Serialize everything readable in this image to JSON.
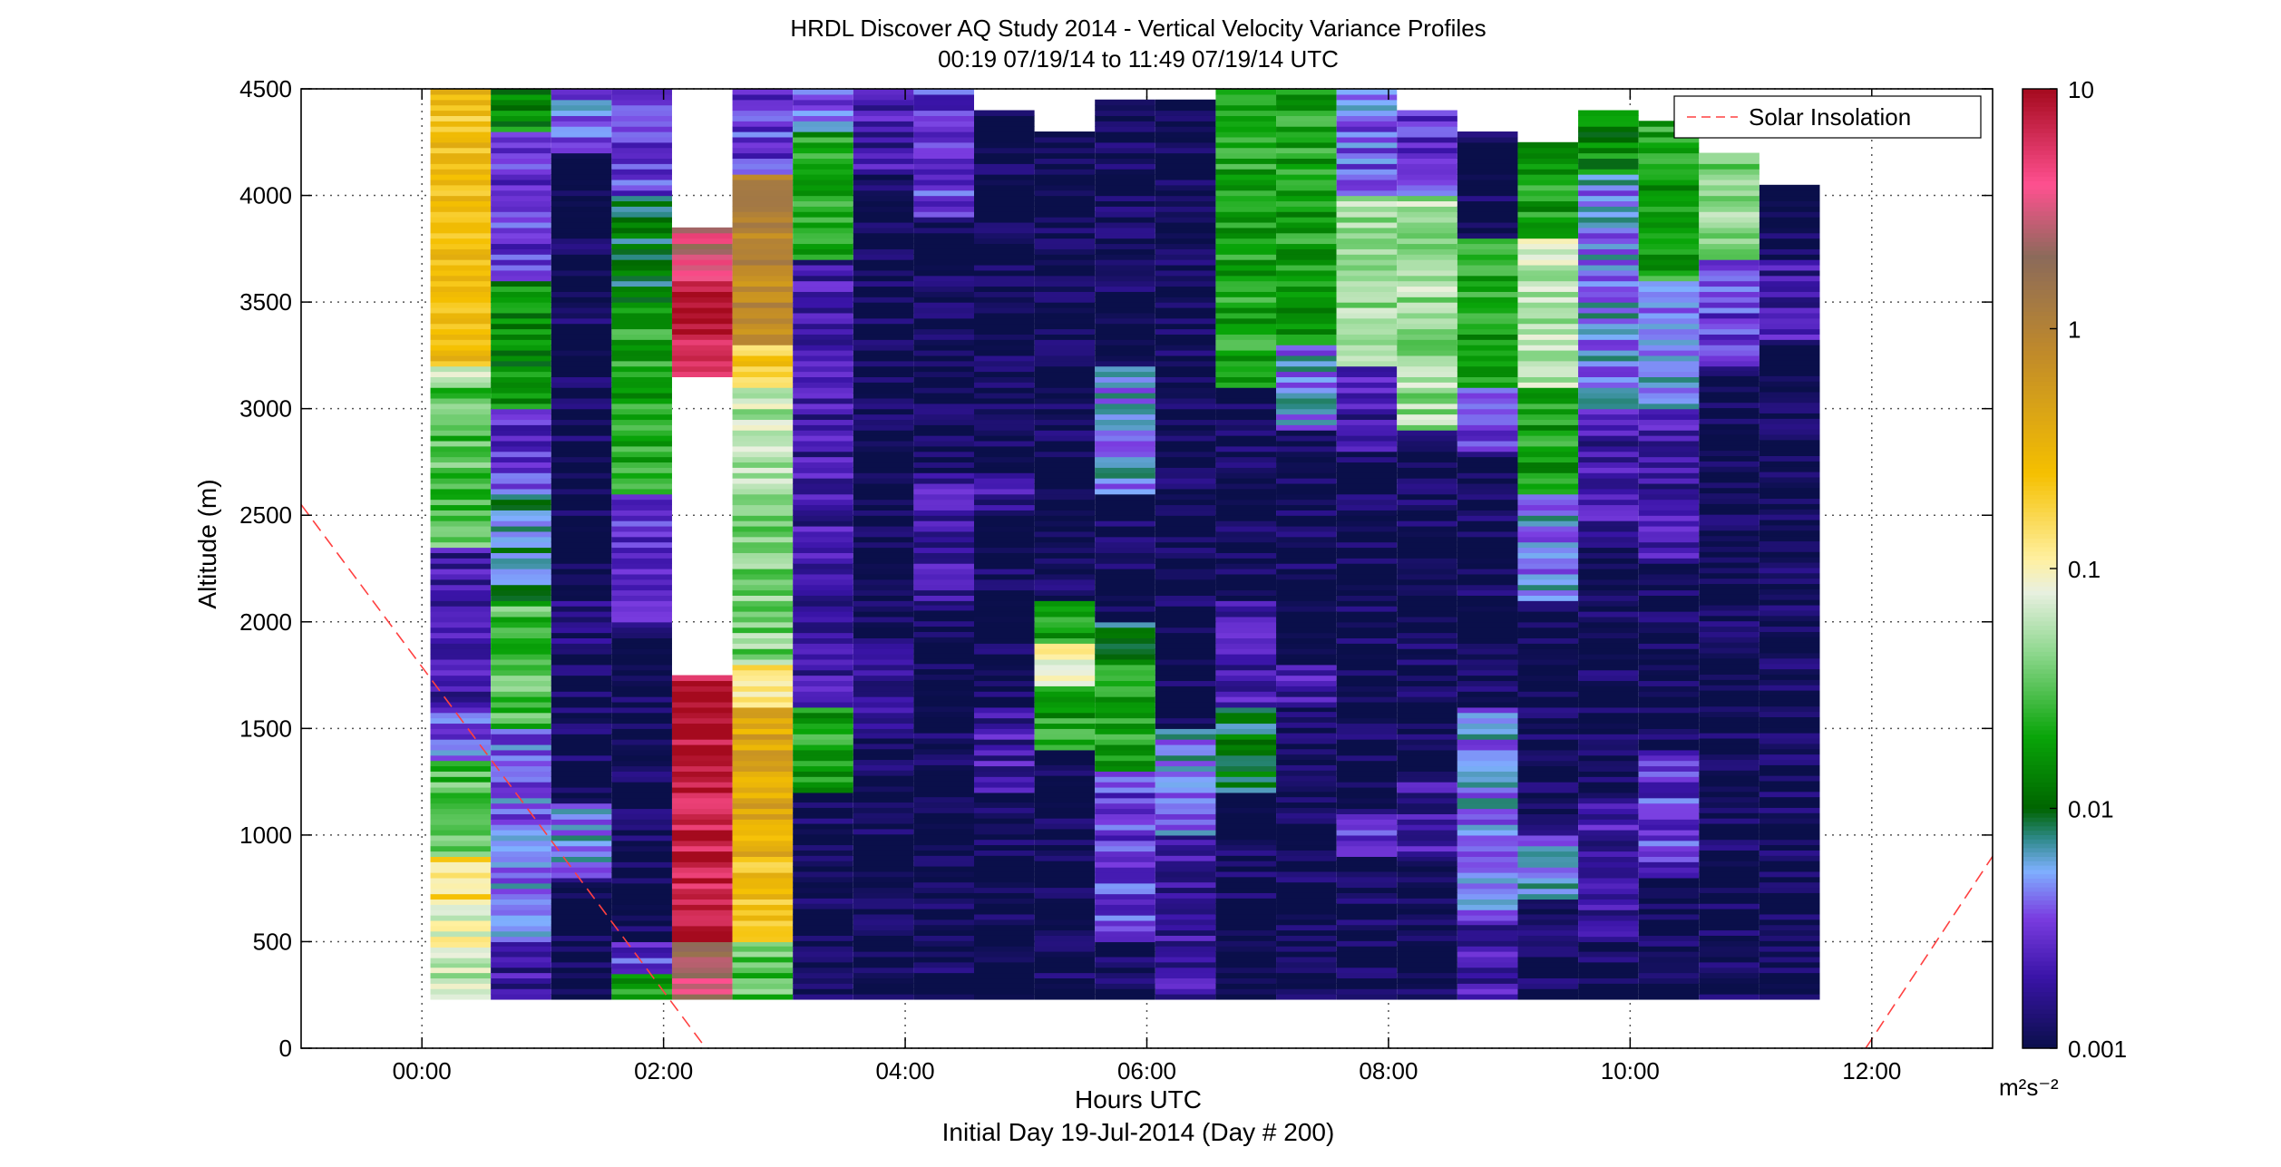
{
  "chart_data": {
    "type": "heatmap",
    "title": "HRDL Discover AQ Study 2014 - Vertical Velocity Variance Profiles",
    "subtitle": "00:19 07/19/14 to 11:49 07/19/14  UTC",
    "xlabel": "Hours UTC",
    "xlabel2": "Initial Day 19-Jul-2014 (Day # 200)",
    "ylabel": "Altitude (m)",
    "xlim": [
      -1.0,
      13.0
    ],
    "ylim": [
      0,
      4500
    ],
    "x_ticks": [
      {
        "value": 0,
        "label": "00:00"
      },
      {
        "value": 2,
        "label": "02:00"
      },
      {
        "value": 4,
        "label": "04:00"
      },
      {
        "value": 6,
        "label": "06:00"
      },
      {
        "value": 8,
        "label": "08:00"
      },
      {
        "value": 10,
        "label": "10:00"
      },
      {
        "value": 12,
        "label": "12:00"
      }
    ],
    "y_ticks": [
      0,
      500,
      1000,
      1500,
      2000,
      2500,
      3000,
      3500,
      4000,
      4500
    ],
    "grid": true,
    "colorbar": {
      "scale": "log",
      "range": [
        0.001,
        10
      ],
      "ticks": [
        {
          "value": 0.001,
          "label": "0.001"
        },
        {
          "value": 0.01,
          "label": "0.01"
        },
        {
          "value": 0.1,
          "label": "0.1"
        },
        {
          "value": 1,
          "label": "1"
        },
        {
          "value": 10,
          "label": "10"
        }
      ],
      "unit": "m²s⁻²",
      "stops": [
        {
          "value": 0.001,
          "color": "#0a0f4a"
        },
        {
          "value": 0.002,
          "color": "#3a14a8"
        },
        {
          "value": 0.0035,
          "color": "#7a3ce0"
        },
        {
          "value": 0.0055,
          "color": "#7fb0ff"
        },
        {
          "value": 0.0075,
          "color": "#2e8a8a"
        },
        {
          "value": 0.01,
          "color": "#006400"
        },
        {
          "value": 0.02,
          "color": "#09a509"
        },
        {
          "value": 0.045,
          "color": "#8fd88f"
        },
        {
          "value": 0.08,
          "color": "#e8f0e0"
        },
        {
          "value": 0.11,
          "color": "#fff0a0"
        },
        {
          "value": 0.25,
          "color": "#f5c000"
        },
        {
          "value": 0.8,
          "color": "#c08a2a"
        },
        {
          "value": 2.0,
          "color": "#8b6a5a"
        },
        {
          "value": 4.0,
          "color": "#ff5090"
        },
        {
          "value": 10,
          "color": "#a50a1e"
        }
      ]
    },
    "legend": {
      "position": "top-right",
      "entries": [
        {
          "name": "Solar Insolation",
          "style": "dashed",
          "color": "#ff4040"
        }
      ]
    },
    "solar_insolation": [
      [
        [
          -1.0,
          2550
        ],
        [
          2.35,
          0
        ]
      ],
      [
        [
          11.95,
          0
        ],
        [
          13.0,
          900
        ]
      ]
    ],
    "profiles": [
      {
        "t": 0.32,
        "bottom": 230,
        "top": 4500,
        "segments": [
          [
            230,
            400,
            0.06
          ],
          [
            400,
            700,
            0.09
          ],
          [
            700,
            900,
            0.15
          ],
          [
            900,
            1350,
            0.03
          ],
          [
            1350,
            1600,
            0.004
          ],
          [
            1600,
            2350,
            0.002
          ],
          [
            2350,
            3100,
            0.03
          ],
          [
            3100,
            3200,
            0.08
          ],
          [
            3200,
            4100,
            0.3
          ],
          [
            4100,
            4500,
            0.25
          ]
        ]
      },
      {
        "t": 0.82,
        "bottom": 230,
        "top": 4500,
        "segments": [
          [
            230,
            500,
            0.002
          ],
          [
            500,
            900,
            0.005
          ],
          [
            900,
            1500,
            0.004
          ],
          [
            1500,
            2100,
            0.03
          ],
          [
            2100,
            2600,
            0.007
          ],
          [
            2600,
            3000,
            0.003
          ],
          [
            3000,
            3600,
            0.015
          ],
          [
            3600,
            4300,
            0.003
          ],
          [
            4300,
            4500,
            0.015
          ]
        ]
      },
      {
        "t": 1.32,
        "bottom": 230,
        "top": 4500,
        "segments": [
          [
            230,
            800,
            0.001
          ],
          [
            800,
            1150,
            0.005
          ],
          [
            1150,
            1900,
            0.001
          ],
          [
            1900,
            2200,
            0.0015
          ],
          [
            2200,
            4200,
            0.001
          ],
          [
            4200,
            4500,
            0.004
          ]
        ]
      },
      {
        "t": 1.82,
        "bottom": 230,
        "top": 4500,
        "segments": [
          [
            230,
            350,
            0.02
          ],
          [
            350,
            500,
            0.003
          ],
          [
            500,
            2000,
            0.001
          ],
          [
            2000,
            2600,
            0.003
          ],
          [
            2600,
            3500,
            0.02
          ],
          [
            3500,
            4000,
            0.01
          ],
          [
            4000,
            4500,
            0.003
          ]
        ]
      },
      {
        "t": 2.32,
        "bottom": 230,
        "top": 3850,
        "segments": [
          [
            230,
            500,
            2.5
          ],
          [
            500,
            1750,
            8
          ],
          [
            3150,
            3600,
            8
          ],
          [
            3600,
            3850,
            3
          ]
        ]
      },
      {
        "t": 2.82,
        "bottom": 230,
        "top": 4500,
        "segments": [
          [
            230,
            500,
            0.03
          ],
          [
            500,
            900,
            0.25
          ],
          [
            900,
            1600,
            0.4
          ],
          [
            1600,
            1800,
            0.12
          ],
          [
            1800,
            2600,
            0.04
          ],
          [
            2600,
            3100,
            0.06
          ],
          [
            3100,
            3300,
            0.2
          ],
          [
            3300,
            4100,
            0.9
          ],
          [
            4100,
            4500,
            0.003
          ]
        ]
      },
      {
        "t": 3.32,
        "bottom": 230,
        "top": 4500,
        "segments": [
          [
            230,
            1200,
            0.001
          ],
          [
            1200,
            1600,
            0.02
          ],
          [
            1600,
            2900,
            0.002
          ],
          [
            2900,
            3700,
            0.002
          ],
          [
            3700,
            4300,
            0.02
          ],
          [
            4300,
            4500,
            0.004
          ]
        ]
      },
      {
        "t": 3.82,
        "bottom": 230,
        "top": 4500,
        "segments": [
          [
            230,
            1500,
            0.001
          ],
          [
            1500,
            1900,
            0.002
          ],
          [
            1900,
            4100,
            0.001
          ],
          [
            4100,
            4500,
            0.002
          ]
        ]
      },
      {
        "t": 4.32,
        "bottom": 230,
        "top": 4500,
        "segments": [
          [
            230,
            2100,
            0.001
          ],
          [
            2100,
            2700,
            0.002
          ],
          [
            2700,
            3900,
            0.001
          ],
          [
            3900,
            4500,
            0.003
          ]
        ]
      },
      {
        "t": 4.82,
        "bottom": 230,
        "top": 4400,
        "segments": [
          [
            230,
            1200,
            0.001
          ],
          [
            1200,
            1600,
            0.002
          ],
          [
            1600,
            2500,
            0.001
          ],
          [
            2500,
            2700,
            0.002
          ],
          [
            2700,
            4400,
            0.001
          ]
        ]
      },
      {
        "t": 5.32,
        "bottom": 230,
        "top": 4300,
        "segments": [
          [
            230,
            1400,
            0.001
          ],
          [
            1400,
            1700,
            0.02
          ],
          [
            1700,
            1900,
            0.11
          ],
          [
            1900,
            2100,
            0.02
          ],
          [
            2100,
            4300,
            0.001
          ]
        ]
      },
      {
        "t": 5.82,
        "bottom": 230,
        "top": 4450,
        "segments": [
          [
            230,
            500,
            0.001
          ],
          [
            500,
            1300,
            0.003
          ],
          [
            1300,
            1800,
            0.02
          ],
          [
            1800,
            2000,
            0.01
          ],
          [
            2000,
            2600,
            0.001
          ],
          [
            2600,
            3200,
            0.005
          ],
          [
            3200,
            4450,
            0.001
          ]
        ]
      },
      {
        "t": 6.32,
        "bottom": 230,
        "top": 4450,
        "segments": [
          [
            230,
            1000,
            0.002
          ],
          [
            1000,
            1500,
            0.005
          ],
          [
            1500,
            4450,
            0.001
          ]
        ]
      },
      {
        "t": 6.82,
        "bottom": 230,
        "top": 4500,
        "segments": [
          [
            230,
            1200,
            0.001
          ],
          [
            1200,
            1600,
            0.01
          ],
          [
            1600,
            2100,
            0.002
          ],
          [
            2100,
            3100,
            0.001
          ],
          [
            3100,
            4500,
            0.02
          ]
        ]
      },
      {
        "t": 7.32,
        "bottom": 230,
        "top": 4500,
        "segments": [
          [
            230,
            1600,
            0.001
          ],
          [
            1600,
            1800,
            0.002
          ],
          [
            1800,
            2900,
            0.001
          ],
          [
            2900,
            3300,
            0.005
          ],
          [
            3300,
            4500,
            0.02
          ]
        ]
      },
      {
        "t": 7.82,
        "bottom": 230,
        "top": 4500,
        "segments": [
          [
            230,
            900,
            0.001
          ],
          [
            900,
            1100,
            0.003
          ],
          [
            1100,
            2800,
            0.001
          ],
          [
            2800,
            3200,
            0.002
          ],
          [
            3200,
            4000,
            0.05
          ],
          [
            4000,
            4500,
            0.004
          ]
        ]
      },
      {
        "t": 8.32,
        "bottom": 230,
        "top": 4400,
        "segments": [
          [
            230,
            900,
            0.001
          ],
          [
            900,
            1300,
            0.002
          ],
          [
            1300,
            2900,
            0.001
          ],
          [
            2900,
            4000,
            0.05
          ],
          [
            4000,
            4400,
            0.003
          ]
        ]
      },
      {
        "t": 8.82,
        "bottom": 230,
        "top": 4300,
        "segments": [
          [
            230,
            600,
            0.002
          ],
          [
            600,
            1600,
            0.005
          ],
          [
            1600,
            2800,
            0.001
          ],
          [
            2800,
            3100,
            0.003
          ],
          [
            3100,
            3800,
            0.02
          ],
          [
            3800,
            4300,
            0.001
          ]
        ]
      },
      {
        "t": 9.32,
        "bottom": 230,
        "top": 4250,
        "segments": [
          [
            230,
            700,
            0.001
          ],
          [
            700,
            1000,
            0.005
          ],
          [
            1000,
            2100,
            0.001
          ],
          [
            2100,
            2600,
            0.005
          ],
          [
            2600,
            3100,
            0.02
          ],
          [
            3100,
            3800,
            0.06
          ],
          [
            3800,
            4250,
            0.02
          ]
        ]
      },
      {
        "t": 9.82,
        "bottom": 230,
        "top": 4400,
        "segments": [
          [
            230,
            500,
            0.001
          ],
          [
            500,
            900,
            0.002
          ],
          [
            900,
            1200,
            0.002
          ],
          [
            1200,
            2400,
            0.001
          ],
          [
            2400,
            3000,
            0.002
          ],
          [
            3000,
            4100,
            0.005
          ],
          [
            4100,
            4400,
            0.015
          ]
        ]
      },
      {
        "t": 10.32,
        "bottom": 230,
        "top": 4350,
        "segments": [
          [
            230,
            800,
            0.001
          ],
          [
            800,
            1400,
            0.003
          ],
          [
            1400,
            2300,
            0.001
          ],
          [
            2300,
            3000,
            0.002
          ],
          [
            3000,
            3600,
            0.005
          ],
          [
            3600,
            4350,
            0.02
          ]
        ]
      },
      {
        "t": 10.82,
        "bottom": 230,
        "top": 4200,
        "segments": [
          [
            230,
            3200,
            0.001
          ],
          [
            3200,
            3700,
            0.003
          ],
          [
            3700,
            4200,
            0.04
          ]
        ]
      },
      {
        "t": 11.32,
        "bottom": 230,
        "top": 4050,
        "segments": [
          [
            230,
            3300,
            0.001
          ],
          [
            3300,
            3700,
            0.002
          ],
          [
            3700,
            4050,
            0.001
          ]
        ]
      }
    ]
  }
}
